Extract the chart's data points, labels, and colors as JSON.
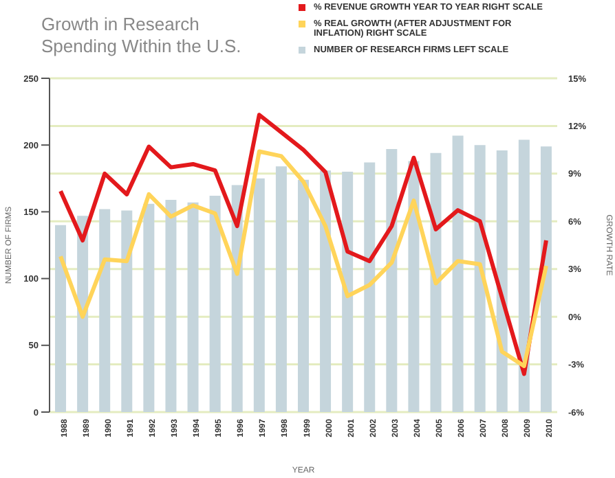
{
  "chart_data": {
    "type": "bar",
    "title": "Growth in Research Spending Within the U.S.",
    "xlabel": "YEAR",
    "ylabel": "NUMBER OF FIRMS",
    "y2label": "GROWTH RATE",
    "categories": [
      "1988",
      "1989",
      "1990",
      "1991",
      "1992",
      "1993",
      "1994",
      "1995",
      "1996",
      "1997",
      "1998",
      "1999",
      "2000",
      "2001",
      "2002",
      "2003",
      "2004",
      "2005",
      "2006",
      "2007",
      "2008",
      "2009",
      "2010"
    ],
    "series": [
      {
        "name": "% REVENUE GROWTH YEAR TO YEAR RIGHT SCALE",
        "type": "line",
        "axis": "y2",
        "color": "#e3191c",
        "values": [
          7.9,
          4.8,
          9.0,
          7.7,
          10.7,
          9.4,
          9.6,
          9.2,
          5.7,
          12.7,
          11.6,
          10.5,
          9.1,
          4.1,
          3.5,
          5.7,
          10.0,
          5.5,
          6.7,
          6.0,
          1.2,
          -3.6,
          4.8
        ]
      },
      {
        "name": "% REAL GROWTH (AFTER ADJUSTMENT FOR INFLATION) RIGHT SCALE",
        "type": "line",
        "axis": "y2",
        "color": "#ffd45a",
        "values": [
          3.8,
          0,
          3.6,
          3.5,
          7.7,
          6.3,
          7.0,
          6.5,
          2.7,
          10.4,
          10.1,
          8.5,
          5.7,
          1.3,
          2.0,
          3.4,
          7.3,
          2.1,
          3.5,
          3.3,
          -2.2,
          -3.1,
          3.2
        ]
      },
      {
        "name": "NUMBER OF RESEARCH FIRMS LEFT SCALE",
        "color": "#c5d5dc",
        "values": [
          140,
          147,
          152,
          151,
          156,
          159,
          157,
          162,
          170,
          175,
          184,
          174,
          181,
          180,
          187,
          197,
          188,
          194,
          207,
          200,
          196,
          204,
          199
        ]
      }
    ],
    "ylim": [
      0,
      250
    ],
    "yticks": [
      0,
      50,
      100,
      150,
      200,
      250
    ],
    "y2lim": [
      -6,
      15
    ],
    "y2ticks": [
      {
        "value": -6,
        "label": "-6%"
      },
      {
        "value": -3,
        "label": "-3%"
      },
      {
        "value": 0,
        "label": "0%"
      },
      {
        "value": 3,
        "label": "3%"
      },
      {
        "value": 6,
        "label": "6%"
      },
      {
        "value": 9,
        "label": "9%"
      },
      {
        "value": 12,
        "label": "12%"
      },
      {
        "value": 15,
        "label": "15%"
      }
    ],
    "grid": "y",
    "legend": "top right",
    "marker": "none"
  }
}
